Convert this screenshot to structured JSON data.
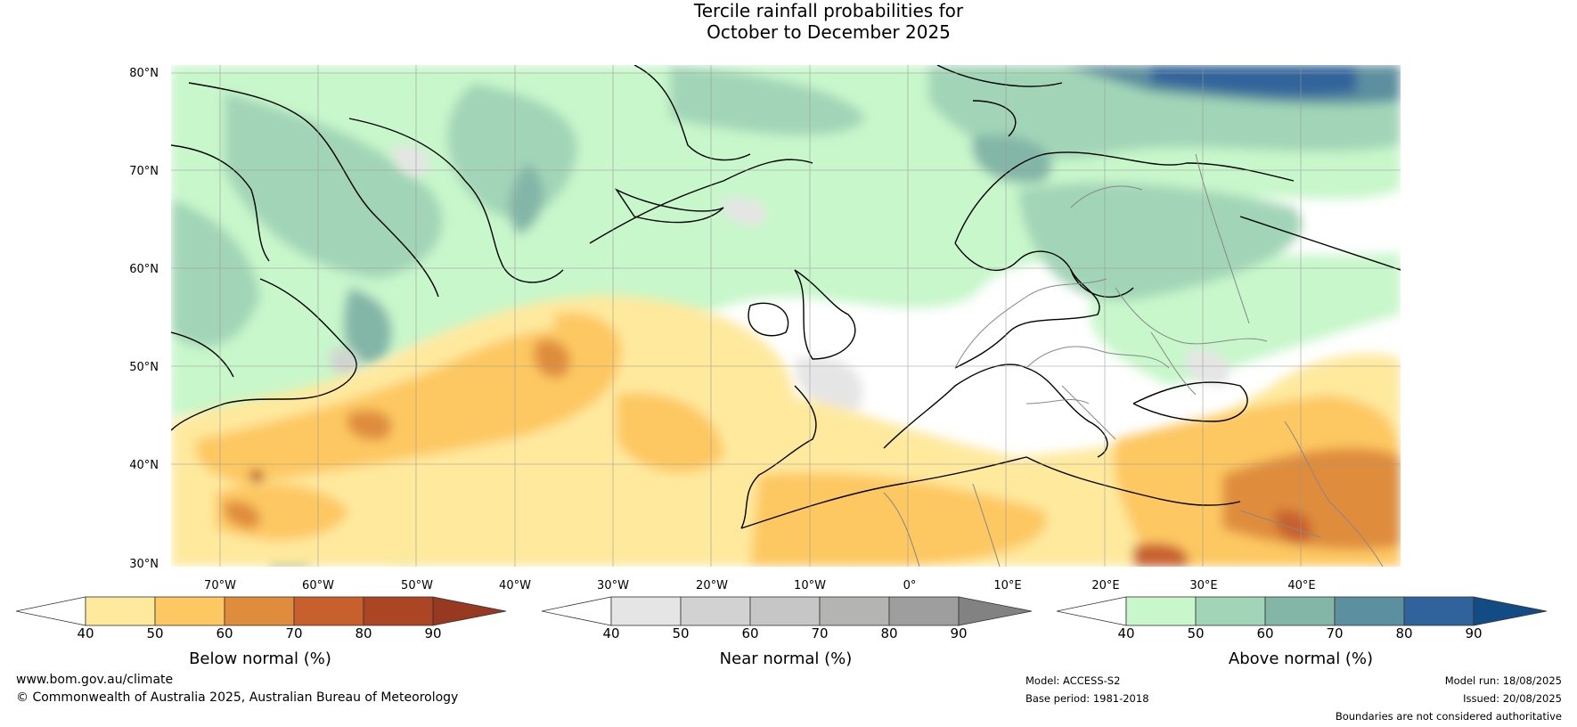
{
  "title": {
    "line1": "Tercile rainfall probabilities for",
    "line2": "October to December 2025"
  },
  "map": {
    "lat_labels": [
      "80°N",
      "70°N",
      "60°N",
      "50°N",
      "40°N",
      "30°N"
    ],
    "lon_labels": [
      "70°W",
      "60°W",
      "50°W",
      "40°W",
      "30°W",
      "20°W",
      "10°W",
      "0°",
      "10°E",
      "20°E",
      "30°E",
      "40°E"
    ]
  },
  "colorbars": [
    {
      "title": "Below normal (%)",
      "ticks": [
        "40",
        "50",
        "60",
        "70",
        "80",
        "90"
      ],
      "colors": [
        "#ffffff",
        "#fee99d",
        "#fdc862",
        "#df8d3d",
        "#c7602d",
        "#ab4524",
        "#973820"
      ]
    },
    {
      "title": "Near normal (%)",
      "ticks": [
        "40",
        "50",
        "60",
        "70",
        "80",
        "90"
      ],
      "colors": [
        "#ffffff",
        "#e5e5e5",
        "#d2d2d2",
        "#c6c6c6",
        "#b4b4b2",
        "#9e9e9e",
        "#828282"
      ]
    },
    {
      "title": "Above normal (%)",
      "ticks": [
        "40",
        "50",
        "60",
        "70",
        "80",
        "90"
      ],
      "colors": [
        "#ffffff",
        "#c8f7cb",
        "#a2d5b7",
        "#84b6a8",
        "#5c8f9f",
        "#30639b",
        "#134c85"
      ]
    }
  ],
  "footer": {
    "website": "www.bom.gov.au/climate",
    "copyright": "© Commonwealth of Australia 2025, Australian Bureau of Meteorology",
    "model": "Model: ACCESS-S2",
    "base_period": "Base period: 1981-2018",
    "model_run": "Model run: 18/08/2025",
    "issued": "Issued: 20/08/2025",
    "disclaimer": "Boundaries are not considered authoritative"
  }
}
